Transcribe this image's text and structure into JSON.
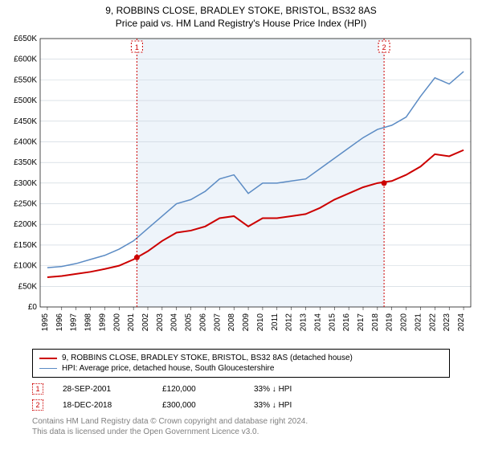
{
  "title": {
    "line1": "9, ROBBINS CLOSE, BRADLEY STOKE, BRISTOL, BS32 8AS",
    "line2": "Price paid vs. HM Land Registry's House Price Index (HPI)"
  },
  "chart": {
    "type": "line",
    "background_color": "#ffffff",
    "shaded_band_color": "#eef4fa",
    "grid_color": "#c7d0da",
    "axis_font_size": 10,
    "x": {
      "years": [
        1995,
        1996,
        1997,
        1998,
        1999,
        2000,
        2001,
        2002,
        2003,
        2004,
        2005,
        2006,
        2007,
        2008,
        2009,
        2010,
        2011,
        2012,
        2013,
        2014,
        2015,
        2016,
        2017,
        2018,
        2019,
        2020,
        2021,
        2022,
        2023,
        2024
      ],
      "shaded_from": 2001,
      "shaded_to": 2018
    },
    "y": {
      "min": 0,
      "max": 650000,
      "tick_step": 50000,
      "prefix": "£",
      "suffix": "K",
      "tick_divisor": 1000
    },
    "series": [
      {
        "name": "property",
        "label": "9, ROBBINS CLOSE, BRADLEY STOKE, BRISTOL, BS32 8AS (detached house)",
        "color": "#cc0000",
        "width": 2,
        "values": [
          72000,
          75000,
          80000,
          85000,
          92000,
          100000,
          115000,
          135000,
          160000,
          180000,
          185000,
          195000,
          215000,
          220000,
          195000,
          215000,
          215000,
          220000,
          225000,
          240000,
          260000,
          275000,
          290000,
          300000,
          305000,
          320000,
          340000,
          370000,
          365000,
          380000
        ]
      },
      {
        "name": "hpi",
        "label": "HPI: Average price, detached house, South Gloucestershire",
        "color": "#5b8bc4",
        "width": 1.5,
        "values": [
          95000,
          98000,
          105000,
          115000,
          125000,
          140000,
          160000,
          190000,
          220000,
          250000,
          260000,
          280000,
          310000,
          320000,
          275000,
          300000,
          300000,
          305000,
          310000,
          335000,
          360000,
          385000,
          410000,
          430000,
          440000,
          460000,
          510000,
          555000,
          540000,
          570000
        ]
      }
    ],
    "sale_markers": [
      {
        "n": "1",
        "year": 2001.74,
        "value": 120000,
        "color": "#cc0000"
      },
      {
        "n": "2",
        "year": 2018.96,
        "value": 300000,
        "color": "#cc0000"
      }
    ]
  },
  "legend": {
    "rows": [
      {
        "color": "#cc0000",
        "width": 2,
        "label": "9, ROBBINS CLOSE, BRADLEY STOKE, BRISTOL, BS32 8AS (detached house)"
      },
      {
        "color": "#5b8bc4",
        "width": 1.5,
        "label": "HPI: Average price, detached house, South Gloucestershire"
      }
    ]
  },
  "sales": [
    {
      "n": "1",
      "color": "#cc0000",
      "date": "28-SEP-2001",
      "price": "£120,000",
      "delta": "33% ↓ HPI"
    },
    {
      "n": "2",
      "color": "#cc0000",
      "date": "18-DEC-2018",
      "price": "£300,000",
      "delta": "33% ↓ HPI"
    }
  ],
  "footer": {
    "line1": "Contains HM Land Registry data © Crown copyright and database right 2024.",
    "line2": "This data is licensed under the Open Government Licence v3.0."
  }
}
